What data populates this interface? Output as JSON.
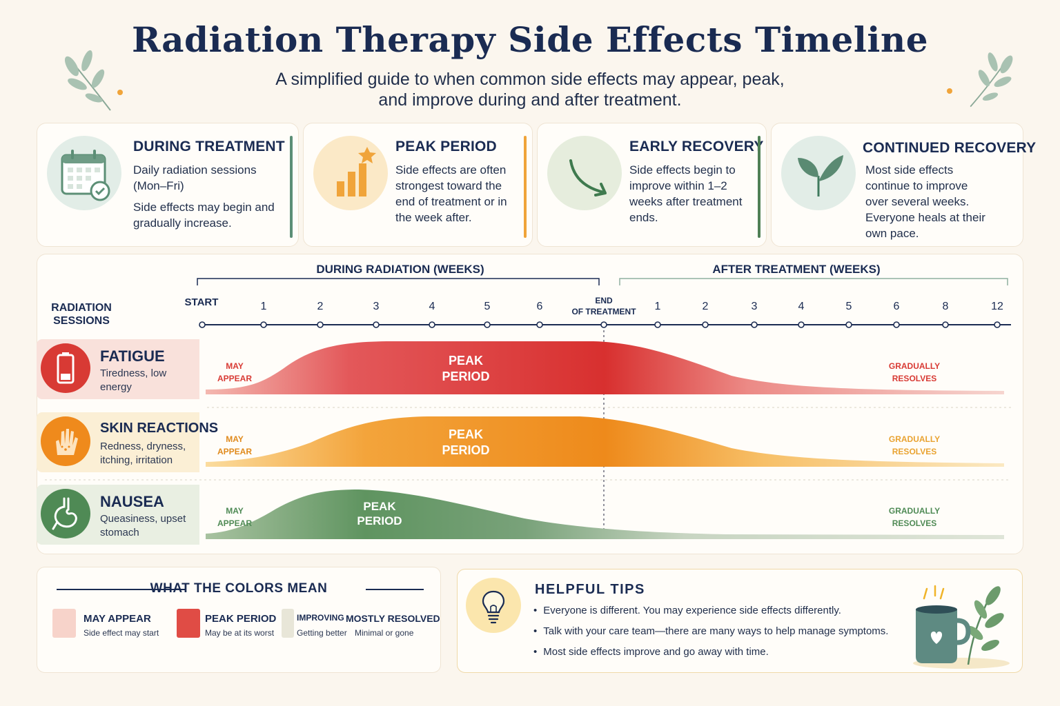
{
  "title": "Radiation Therapy Side Effects Timeline",
  "subtitle": "A simplified guide to when common side effects may appear, peak, and improve during and after treatment.",
  "phases": [
    {
      "title": "DURING TREATMENT",
      "lines": [
        "Daily radiation sessions (Mon–Fri)",
        "Side effects may begin and gradually increase."
      ],
      "icon": "calendar-check-icon",
      "color": "#5c8f76"
    },
    {
      "title": "PEAK PERIOD",
      "lines": [
        "Side effects are often strongest toward the end of treatment or in the week after."
      ],
      "icon": "rising-bars-star-icon",
      "color": "#f0a43a"
    },
    {
      "title": "EARLY RECOVERY",
      "lines": [
        "Side effects begin to improve within 1–2 weeks after treatment ends."
      ],
      "icon": "downward-arrow-icon",
      "color": "#4f7f55"
    },
    {
      "title": "CONTINUED RECOVERY",
      "lines": [
        "Most side effects continue to improve over several weeks. Everyone heals at their own pace."
      ],
      "icon": "leaf-icon",
      "color": "#5a8a72"
    }
  ],
  "timeline": {
    "during_label": "DURING RADIATION (WEEKS)",
    "after_label": "AFTER TREATMENT (WEEKS)",
    "row_label": "RADIATION SESSIONS",
    "start_label": "START",
    "end_label_1": "END",
    "end_label_2": "OF TREATMENT",
    "during_ticks": [
      "1",
      "2",
      "3",
      "4",
      "5",
      "6"
    ],
    "after_ticks": [
      "1",
      "2",
      "3",
      "4",
      "5",
      "6",
      "8",
      "12"
    ]
  },
  "effects": [
    {
      "name": "FATIGUE",
      "desc": "Tiredness, low energy",
      "icon": "battery-low-icon",
      "color": "#d83a34",
      "bg": "#f9e1db",
      "appear_1": "MAY",
      "appear_2": "APPEAR",
      "peak_1": "PEAK",
      "peak_2": "PERIOD",
      "resolve_1": "GRADUALLY",
      "resolve_2": "RESOLVES"
    },
    {
      "name": "SKIN REACTIONS",
      "desc": "Redness, dryness, itching, irritation",
      "icon": "hand-irritation-icon",
      "color": "#ef8a1c",
      "bg": "#fbefd5",
      "appear_1": "MAY",
      "appear_2": "APPEAR",
      "peak_1": "PEAK",
      "peak_2": "PERIOD",
      "resolve_1": "GRADUALLY",
      "resolve_2": "RESOLVES"
    },
    {
      "name": "NAUSEA",
      "desc": "Queasiness, upset stomach",
      "icon": "stomach-icon",
      "color": "#4f8a55",
      "bg": "#e9efe2",
      "appear_1": "MAY",
      "appear_2": "APPEAR",
      "peak_1": "PEAK",
      "peak_2": "PERIOD",
      "resolve_1": "GRADUALLY",
      "resolve_2": "RESOLVES"
    }
  ],
  "legend": {
    "heading": "WHAT THE COLORS MEAN",
    "items": [
      {
        "label": "MAY APPEAR",
        "sub": "Side effect may start",
        "color": "#f7d3ca"
      },
      {
        "label": "PEAK PERIOD",
        "sub": "May be at its worst",
        "color": "#e04c45"
      },
      {
        "label": "IMPROVING",
        "sub": "Getting better",
        "color": "#e8e6d8"
      },
      {
        "label": "MOSTLY RESOLVED",
        "sub": "Minimal or gone",
        "color": "#fffdf9"
      }
    ]
  },
  "tips": {
    "heading": "HELPFUL TIPS",
    "items": [
      "Everyone is different. You may experience side effects differently.",
      "Talk with your care team—there are many ways to help manage symptoms.",
      "Most side effects improve and go away with time."
    ]
  }
}
